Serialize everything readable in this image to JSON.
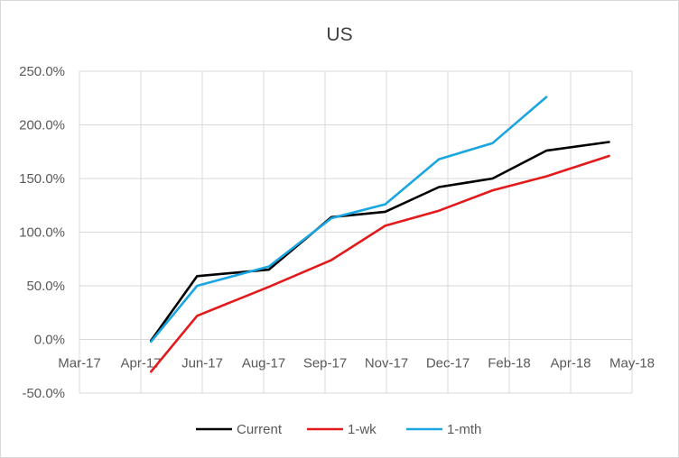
{
  "chart_data": {
    "type": "line",
    "title": "US",
    "xlabel": "",
    "ylabel": "",
    "x_tick_labels": [
      "Mar-17",
      "Apr-17",
      "Jun-17",
      "Aug-17",
      "Sep-17",
      "Nov-17",
      "Dec-17",
      "Feb-18",
      "Apr-18",
      "May-18"
    ],
    "y_tick_labels": [
      "-50.0%",
      "0.0%",
      "50.0%",
      "100.0%",
      "150.0%",
      "200.0%",
      "250.0%"
    ],
    "ylim": [
      -50,
      250
    ],
    "grid": "vertical-and-horizontal",
    "legend_position": "bottom",
    "series": [
      {
        "name": "Current",
        "color": "#000000",
        "points": [
          [
            "2017-04-26",
            -1
          ],
          [
            "2017-06-01",
            59
          ],
          [
            "2017-07-27",
            65
          ],
          [
            "2017-09-14",
            114
          ],
          [
            "2017-10-26",
            119
          ],
          [
            "2017-12-07",
            142
          ],
          [
            "2018-01-18",
            150
          ],
          [
            "2018-03-01",
            176
          ],
          [
            "2018-04-19",
            184
          ]
        ]
      },
      {
        "name": "1-wk",
        "color": "#e31a1c",
        "points": [
          [
            "2017-04-26",
            -30
          ],
          [
            "2017-06-01",
            22
          ],
          [
            "2017-07-27",
            49
          ],
          [
            "2017-09-14",
            74
          ],
          [
            "2017-10-26",
            106
          ],
          [
            "2017-12-07",
            120
          ],
          [
            "2018-01-18",
            139
          ],
          [
            "2018-03-01",
            152
          ],
          [
            "2018-04-19",
            171
          ]
        ]
      },
      {
        "name": "1-mth",
        "color": "#1aa6e0",
        "points": [
          [
            "2017-04-26",
            -2
          ],
          [
            "2017-06-01",
            50
          ],
          [
            "2017-07-27",
            68
          ],
          [
            "2017-09-14",
            113
          ],
          [
            "2017-10-26",
            126
          ],
          [
            "2017-12-07",
            168
          ],
          [
            "2018-01-18",
            183
          ],
          [
            "2018-03-01",
            226
          ]
        ]
      }
    ]
  }
}
